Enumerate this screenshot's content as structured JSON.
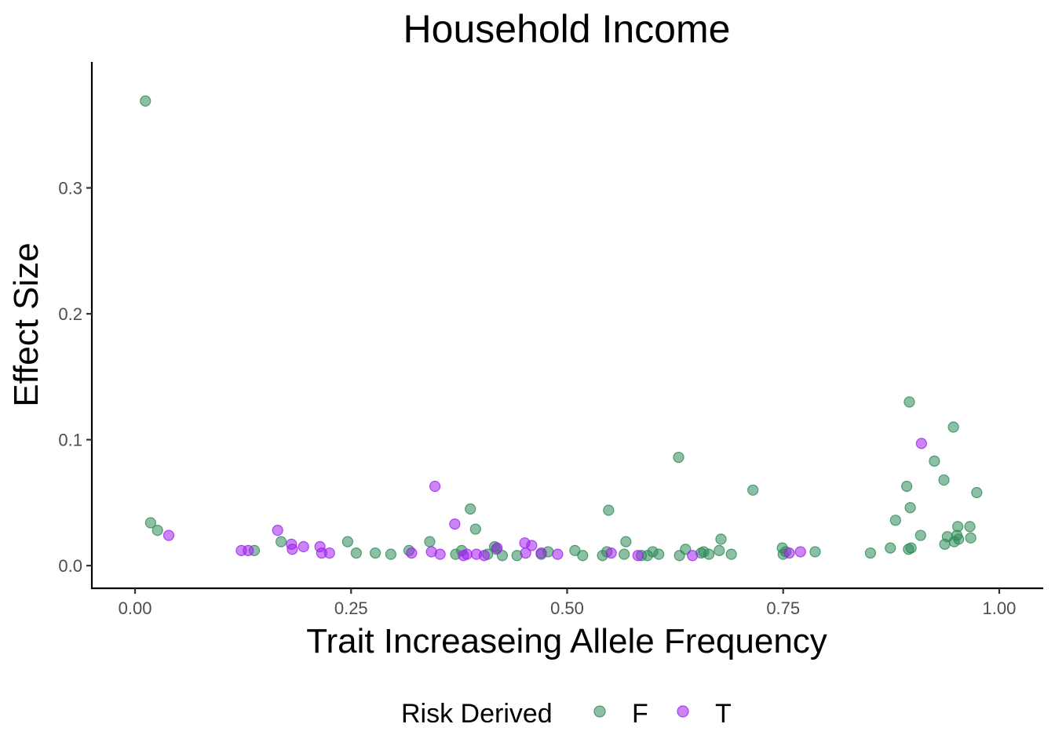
{
  "chart_data": {
    "type": "scatter",
    "title": "Household Income",
    "xlabel": "Trait Increaseing Allele Frequency",
    "ylabel": "Effect Size",
    "xlim": [
      -0.05,
      1.05
    ],
    "ylim": [
      -0.018,
      0.4
    ],
    "x_ticks": [
      0.0,
      0.25,
      0.5,
      0.75,
      1.0
    ],
    "x_tick_labels": [
      "0.00",
      "0.25",
      "0.50",
      "0.75",
      "1.00"
    ],
    "y_ticks": [
      0.0,
      0.1,
      0.2,
      0.3
    ],
    "y_tick_labels": [
      "0.0",
      "0.1",
      "0.2",
      "0.3"
    ],
    "grid": false,
    "legend": {
      "title": "Risk Derived",
      "position": "bottom",
      "entries": [
        "F",
        "T"
      ]
    },
    "colors": {
      "F": "#2e8b57",
      "T": "#a020f0"
    },
    "series": [
      {
        "name": "F",
        "points": [
          [
            0.012,
            0.369
          ],
          [
            0.018,
            0.034
          ],
          [
            0.026,
            0.028
          ],
          [
            0.138,
            0.012
          ],
          [
            0.169,
            0.019
          ],
          [
            0.246,
            0.019
          ],
          [
            0.256,
            0.01
          ],
          [
            0.278,
            0.01
          ],
          [
            0.296,
            0.009
          ],
          [
            0.317,
            0.012
          ],
          [
            0.341,
            0.019
          ],
          [
            0.371,
            0.009
          ],
          [
            0.378,
            0.012
          ],
          [
            0.388,
            0.045
          ],
          [
            0.394,
            0.029
          ],
          [
            0.408,
            0.009
          ],
          [
            0.416,
            0.015
          ],
          [
            0.418,
            0.013
          ],
          [
            0.425,
            0.008
          ],
          [
            0.442,
            0.008
          ],
          [
            0.47,
            0.009
          ],
          [
            0.478,
            0.011
          ],
          [
            0.509,
            0.012
          ],
          [
            0.518,
            0.008
          ],
          [
            0.541,
            0.008
          ],
          [
            0.546,
            0.011
          ],
          [
            0.548,
            0.044
          ],
          [
            0.566,
            0.009
          ],
          [
            0.568,
            0.019
          ],
          [
            0.586,
            0.008
          ],
          [
            0.593,
            0.008
          ],
          [
            0.599,
            0.011
          ],
          [
            0.606,
            0.009
          ],
          [
            0.629,
            0.086
          ],
          [
            0.63,
            0.008
          ],
          [
            0.637,
            0.013
          ],
          [
            0.655,
            0.01
          ],
          [
            0.658,
            0.011
          ],
          [
            0.664,
            0.009
          ],
          [
            0.676,
            0.012
          ],
          [
            0.678,
            0.021
          ],
          [
            0.69,
            0.009
          ],
          [
            0.715,
            0.06
          ],
          [
            0.749,
            0.014
          ],
          [
            0.75,
            0.009
          ],
          [
            0.753,
            0.011
          ],
          [
            0.787,
            0.011
          ],
          [
            0.851,
            0.01
          ],
          [
            0.874,
            0.014
          ],
          [
            0.88,
            0.036
          ],
          [
            0.893,
            0.063
          ],
          [
            0.895,
            0.013
          ],
          [
            0.896,
            0.13
          ],
          [
            0.897,
            0.046
          ],
          [
            0.898,
            0.014
          ],
          [
            0.909,
            0.024
          ],
          [
            0.925,
            0.083
          ],
          [
            0.936,
            0.068
          ],
          [
            0.937,
            0.017
          ],
          [
            0.94,
            0.023
          ],
          [
            0.947,
            0.11
          ],
          [
            0.948,
            0.019
          ],
          [
            0.951,
            0.024
          ],
          [
            0.952,
            0.031
          ],
          [
            0.953,
            0.021
          ],
          [
            0.966,
            0.031
          ],
          [
            0.967,
            0.022
          ],
          [
            0.974,
            0.058
          ]
        ]
      },
      {
        "name": "T",
        "points": [
          [
            0.039,
            0.024
          ],
          [
            0.123,
            0.012
          ],
          [
            0.131,
            0.012
          ],
          [
            0.165,
            0.028
          ],
          [
            0.181,
            0.017
          ],
          [
            0.182,
            0.013
          ],
          [
            0.195,
            0.015
          ],
          [
            0.214,
            0.015
          ],
          [
            0.216,
            0.01
          ],
          [
            0.225,
            0.01
          ],
          [
            0.32,
            0.01
          ],
          [
            0.343,
            0.011
          ],
          [
            0.347,
            0.063
          ],
          [
            0.353,
            0.009
          ],
          [
            0.37,
            0.033
          ],
          [
            0.38,
            0.008
          ],
          [
            0.384,
            0.009
          ],
          [
            0.395,
            0.009
          ],
          [
            0.404,
            0.008
          ],
          [
            0.419,
            0.014
          ],
          [
            0.451,
            0.018
          ],
          [
            0.452,
            0.01
          ],
          [
            0.459,
            0.016
          ],
          [
            0.47,
            0.01
          ],
          [
            0.489,
            0.009
          ],
          [
            0.551,
            0.01
          ],
          [
            0.582,
            0.008
          ],
          [
            0.645,
            0.008
          ],
          [
            0.757,
            0.01
          ],
          [
            0.77,
            0.011
          ],
          [
            0.91,
            0.097
          ]
        ]
      }
    ]
  }
}
